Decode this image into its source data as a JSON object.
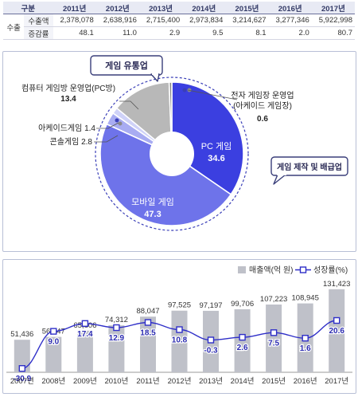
{
  "table": {
    "header": [
      "구분",
      "2011년",
      "2012년",
      "2013년",
      "2014년",
      "2015년",
      "2016년",
      "2017년"
    ],
    "section_label": "수출",
    "rows": [
      {
        "label": "수출액",
        "values": [
          "2,378,078",
          "2,638,916",
          "2,715,400",
          "2,973,834",
          "3,214,627",
          "3,277,346",
          "5,922,998"
        ]
      },
      {
        "label": "증감률",
        "values": [
          "48.1",
          "11.0",
          "2.9",
          "9.5",
          "8.1",
          "2.0",
          "80.7"
        ]
      }
    ]
  },
  "pie": {
    "callout_distribution": "게임 유통업",
    "callout_production": "게임 제작 및 배급업",
    "labels": {
      "pc_bang_name": "컴퓨터 게임방 운영업(PC방)",
      "pc_bang_value": "13.4",
      "arcade_room_name_1": "전자 게임장 운영업",
      "arcade_room_name_2": "(아케이드 게임장)",
      "arcade_room_value": "0.6",
      "arcade_game": "아케이드게임 1.4",
      "console_game": "콘솔게임 2.8",
      "pc_game_name": "PC 게임",
      "pc_game_value": "34.6",
      "mobile_game_name": "모바일 게임",
      "mobile_game_value": "47.3"
    }
  },
  "chart_data": [
    {
      "type": "pie",
      "donut": true,
      "categories": [
        "PC 게임",
        "모바일 게임",
        "콘솔게임",
        "아케이드게임",
        "컴퓨터 게임방 운영업(PC방)",
        "전자 게임장 운영업(아케이드 게임장)"
      ],
      "values": [
        34.6,
        47.3,
        2.8,
        1.4,
        13.4,
        0.6
      ],
      "colors": [
        "#3b3fe0",
        "#6e73ea",
        "#a8acf2",
        "#cfd2f8",
        "#b8b8b8",
        "#8a8a8a"
      ],
      "groups": {
        "게임 제작 및 배급업": [
          "PC 게임",
          "모바일 게임",
          "콘솔게임",
          "아케이드게임"
        ],
        "게임 유통업": [
          "컴퓨터 게임방 운영업(PC방)",
          "전자 게임장 운영업(아케이드 게임장)"
        ]
      }
    },
    {
      "type": "bar",
      "categories": [
        "2007년",
        "2008년",
        "2009년",
        "2010년",
        "2011년",
        "2012년",
        "2013년",
        "2014년",
        "2015년",
        "2016년",
        "2017년"
      ],
      "series": [
        {
          "name": "매출액(억 원)",
          "type": "bar",
          "values": [
            51436,
            56047,
            65806,
            74312,
            88047,
            97525,
            97197,
            99706,
            107223,
            108945,
            131423
          ],
          "value_labels": [
            "51,436",
            "56,047",
            "65,806",
            "74,312",
            "88,047",
            "97,525",
            "97,197",
            "99,706",
            "107,223",
            "108,945",
            "131,423"
          ],
          "color": "#bfc1c9"
        },
        {
          "name": "성장률(%)",
          "type": "line",
          "values": [
            -30.9,
            9.0,
            17.4,
            12.9,
            18.5,
            10.8,
            -0.3,
            2.6,
            7.5,
            1.6,
            20.6
          ],
          "value_labels": [
            "-30.9",
            "9.0",
            "17.4",
            "12.9",
            "18.5",
            "10.8",
            "-0.3",
            "2.6",
            "7.5",
            "1.6",
            "20.6"
          ],
          "color": "#2f2fc8"
        }
      ],
      "bar_ylim": [
        0,
        140000
      ],
      "line_ylim": [
        -35,
        60
      ],
      "legend": "top-right",
      "grid": false
    }
  ]
}
